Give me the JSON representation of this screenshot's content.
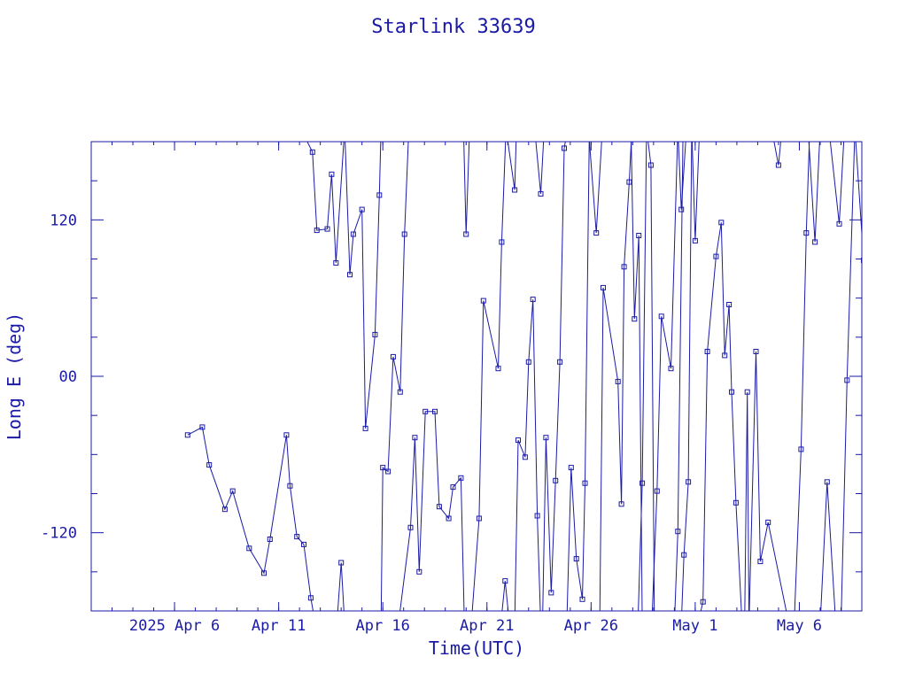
{
  "colors": {
    "ink": "#1a1aa6",
    "background": "#ffffff"
  },
  "chart_data": {
    "type": "line",
    "title": "Starlink 33639",
    "xlabel": "Time(UTC)",
    "ylabel": "Long E (deg)",
    "x_ticks": [
      {
        "day": 4,
        "label": "2025 Apr  6"
      },
      {
        "day": 9,
        "label": "Apr 11"
      },
      {
        "day": 14,
        "label": "Apr 16"
      },
      {
        "day": 19,
        "label": "Apr 21"
      },
      {
        "day": 24,
        "label": "Apr 26"
      },
      {
        "day": 29,
        "label": "May  1"
      },
      {
        "day": 34,
        "label": "May  6"
      }
    ],
    "y_ticks": [
      {
        "value": 120,
        "label": "120"
      },
      {
        "value": 0,
        "label": "00"
      },
      {
        "value": -120,
        "label": "-120"
      }
    ],
    "xlim": [
      "2025-04-02",
      "2025-05-09"
    ],
    "ylim": [
      -180,
      180
    ],
    "grid": false,
    "series": [
      {
        "segments": [
          [
            [
              "2025-04-06 15:00",
              -45
            ],
            [
              "2025-04-07 08:00",
              -39
            ],
            [
              "2025-04-07 16:00",
              -68
            ],
            [
              "2025-04-08 10:00",
              -102
            ],
            [
              "2025-04-08 19:00",
              -88
            ],
            [
              "2025-04-09 14:00",
              -132
            ],
            [
              "2025-04-10 07:00",
              -151
            ],
            [
              "2025-04-10 14:00",
              -125
            ],
            [
              "2025-04-11 09:00",
              -45
            ],
            [
              "2025-04-11 13:00",
              -84
            ],
            [
              "2025-04-11 21:00",
              -123
            ],
            [
              "2025-04-12 05:00",
              -129
            ],
            [
              "2025-04-12 13:00",
              -170
            ],
            [
              "2025-04-12 18:00",
              -189
            ]
          ],
          [
            [
              "2025-04-12 06:00",
              184
            ],
            [
              "2025-04-12 15:00",
              172
            ],
            [
              "2025-04-12 20:00",
              112
            ],
            [
              "2025-04-13 08:00",
              113
            ],
            [
              "2025-04-13 13:00",
              155
            ],
            [
              "2025-04-13 18:00",
              87
            ],
            [
              "2025-04-14 04:00",
              190
            ]
          ],
          [
            [
              "2025-04-13 19:00",
              -190
            ],
            [
              "2025-04-14 00:00",
              -143
            ],
            [
              "2025-04-14 04:00",
              -190
            ]
          ],
          [
            [
              "2025-04-14 04:00",
              190
            ],
            [
              "2025-04-14 10:00",
              78
            ],
            [
              "2025-04-14 14:00",
              109
            ],
            [
              "2025-04-15 00:00",
              128
            ],
            [
              "2025-04-15 04:00",
              -40
            ],
            [
              "2025-04-15 15:00",
              32
            ],
            [
              "2025-04-15 20:00",
              139
            ],
            [
              "2025-04-15 22:00",
              190
            ]
          ],
          [
            [
              "2025-04-15 22:00",
              -190
            ],
            [
              "2025-04-16 00:00",
              -70
            ],
            [
              "2025-04-16 06:00",
              -73
            ],
            [
              "2025-04-16 12:00",
              15
            ],
            [
              "2025-04-16 20:00",
              -12
            ],
            [
              "2025-04-17 01:00",
              109
            ],
            [
              "2025-04-17 06:00",
              190
            ]
          ],
          [
            [
              "2025-04-16 18:00",
              -190
            ],
            [
              "2025-04-17 08:00",
              -116
            ],
            [
              "2025-04-17 13:00",
              -47
            ],
            [
              "2025-04-17 18:00",
              -150
            ],
            [
              "2025-04-18 01:00",
              -27
            ],
            [
              "2025-04-18 12:00",
              -27
            ],
            [
              "2025-04-18 17:00",
              -100
            ],
            [
              "2025-04-19 04:00",
              -109
            ],
            [
              "2025-04-19 09:00",
              -85
            ],
            [
              "2025-04-19 18:00",
              -78
            ],
            [
              "2025-04-19 22:00",
              -190
            ]
          ],
          [
            [
              "2025-04-19 21:00",
              190
            ],
            [
              "2025-04-20 00:00",
              109
            ],
            [
              "2025-04-20 04:00",
              190
            ]
          ],
          [
            [
              "2025-04-20 06:00",
              -190
            ],
            [
              "2025-04-20 15:00",
              -109
            ],
            [
              "2025-04-20 20:00",
              58
            ],
            [
              "2025-04-21 13:00",
              6
            ],
            [
              "2025-04-21 17:00",
              103
            ],
            [
              "2025-04-21 22:00",
              190
            ]
          ],
          [
            [
              "2025-04-21 16:00",
              -190
            ],
            [
              "2025-04-21 21:00",
              -157
            ],
            [
              "2025-04-22 02:00",
              -190
            ]
          ],
          [
            [
              "2025-04-21 22:00",
              190
            ],
            [
              "2025-04-22 08:00",
              143
            ],
            [
              "2025-04-22 10:00",
              190
            ]
          ],
          [
            [
              "2025-04-22 08:00",
              -190
            ],
            [
              "2025-04-22 12:00",
              -49
            ],
            [
              "2025-04-22 20:00",
              -62
            ],
            [
              "2025-04-23 00:00",
              11
            ],
            [
              "2025-04-23 05:00",
              59
            ],
            [
              "2025-04-23 10:00",
              -107
            ],
            [
              "2025-04-23 14:00",
              -190
            ]
          ],
          [
            [
              "2025-04-23 07:00",
              190
            ],
            [
              "2025-04-23 14:00",
              140
            ],
            [
              "2025-04-23 18:00",
              190
            ]
          ],
          [
            [
              "2025-04-23 16:00",
              -190
            ],
            [
              "2025-04-23 20:00",
              -47
            ],
            [
              "2025-04-24 02:00",
              -166
            ],
            [
              "2025-04-24 07:00",
              -80
            ],
            [
              "2025-04-24 12:00",
              11
            ],
            [
              "2025-04-24 17:00",
              175
            ],
            [
              "2025-04-24 21:00",
              190
            ]
          ],
          [
            [
              "2025-04-24 20:00",
              -190
            ],
            [
              "2025-04-25 01:00",
              -70
            ],
            [
              "2025-04-25 07:00",
              -140
            ],
            [
              "2025-04-25 14:00",
              -171
            ],
            [
              "2025-04-25 17:00",
              -82
            ],
            [
              "2025-04-25 22:00",
              190
            ]
          ],
          [
            [
              "2025-04-25 21:00",
              190
            ],
            [
              "2025-04-26 06:00",
              110
            ],
            [
              "2025-04-26 13:00",
              190
            ]
          ],
          [
            [
              "2025-04-26 10:00",
              -190
            ],
            [
              "2025-04-26 14:00",
              68
            ],
            [
              "2025-04-27 07:00",
              -4
            ],
            [
              "2025-04-27 11:00",
              -98
            ],
            [
              "2025-04-27 14:00",
              84
            ],
            [
              "2025-04-27 20:00",
              149
            ],
            [
              "2025-04-27 23:00",
              190
            ]
          ],
          [
            [
              "2025-04-27 22:00",
              190
            ],
            [
              "2025-04-28 02:00",
              44
            ],
            [
              "2025-04-28 07:00",
              108
            ],
            [
              "2025-04-28 11:00",
              -190
            ]
          ],
          [
            [
              "2025-04-28 06:00",
              -190
            ],
            [
              "2025-04-28 11:00",
              -82
            ],
            [
              "2025-04-28 16:00",
              190
            ]
          ],
          [
            [
              "2025-04-28 16:00",
              190
            ],
            [
              "2025-04-28 21:00",
              162
            ],
            [
              "2025-04-29 01:00",
              -190
            ]
          ],
          [
            [
              "2025-04-28 22:00",
              -190
            ],
            [
              "2025-04-29 04:00",
              -88
            ],
            [
              "2025-04-29 09:00",
              46
            ],
            [
              "2025-04-29 20:00",
              6
            ],
            [
              "2025-04-30 04:00",
              190
            ]
          ],
          [
            [
              "2025-04-30 00:00",
              -190
            ],
            [
              "2025-04-30 04:00",
              -119
            ],
            [
              "2025-04-30 10:00",
              190
            ]
          ],
          [
            [
              "2025-04-30 04:00",
              190
            ],
            [
              "2025-04-30 08:00",
              128
            ],
            [
              "2025-04-30 14:00",
              190
            ]
          ],
          [
            [
              "2025-04-30 08:00",
              -190
            ],
            [
              "2025-04-30 11:00",
              -137
            ],
            [
              "2025-04-30 16:00",
              -81
            ],
            [
              "2025-04-30 20:00",
              190
            ]
          ],
          [
            [
              "2025-04-30 20:00",
              190
            ],
            [
              "2025-05-01 00:00",
              104
            ],
            [
              "2025-05-01 05:00",
              190
            ]
          ],
          [
            [
              "2025-05-01 03:00",
              -190
            ],
            [
              "2025-05-01 09:00",
              -173
            ],
            [
              "2025-05-01 14:00",
              19
            ],
            [
              "2025-05-02 00:00",
              92
            ],
            [
              "2025-05-02 06:00",
              118
            ],
            [
              "2025-05-02 10:00",
              16
            ],
            [
              "2025-05-02 15:00",
              55
            ],
            [
              "2025-05-02 18:00",
              -12
            ],
            [
              "2025-05-02 23:00",
              -97
            ],
            [
              "2025-05-03 06:00",
              -190
            ]
          ],
          [
            [
              "2025-05-03 09:00",
              -190
            ],
            [
              "2025-05-03 12:00",
              -12
            ],
            [
              "2025-05-03 14:00",
              -190
            ]
          ],
          [
            [
              "2025-05-03 14:00",
              -190
            ],
            [
              "2025-05-03 22:00",
              19
            ],
            [
              "2025-05-04 03:00",
              -142
            ],
            [
              "2025-05-04 12:00",
              -112
            ],
            [
              "2025-05-05 12:00",
              -190
            ]
          ],
          [
            [
              "2025-05-04 16:00",
              190
            ],
            [
              "2025-05-05 00:00",
              162
            ],
            [
              "2025-05-05 04:00",
              190
            ]
          ],
          [
            [
              "2025-05-05 18:00",
              -190
            ],
            [
              "2025-05-06 02:00",
              -56
            ],
            [
              "2025-05-06 08:00",
              110
            ],
            [
              "2025-05-06 12:00",
              190
            ]
          ],
          [
            [
              "2025-05-06 10:00",
              190
            ],
            [
              "2025-05-06 18:00",
              103
            ],
            [
              "2025-05-07 00:00",
              190
            ]
          ],
          [
            [
              "2025-05-07 00:00",
              -190
            ],
            [
              "2025-05-07 08:00",
              -81
            ],
            [
              "2025-05-07 18:00",
              -190
            ]
          ],
          [
            [
              "2025-05-07 10:00",
              190
            ],
            [
              "2025-05-07 22:00",
              117
            ],
            [
              "2025-05-08 04:00",
              190
            ]
          ],
          [
            [
              "2025-05-08 00:00",
              -190
            ],
            [
              "2025-05-08 07:00",
              -3
            ],
            [
              "2025-05-08 16:00",
              190
            ]
          ],
          [
            [
              "2025-05-08 16:00",
              190
            ],
            [
              "2025-05-09 02:00",
              89
            ],
            [
              "2025-05-09 12:00",
              90
            ]
          ]
        ]
      }
    ]
  }
}
